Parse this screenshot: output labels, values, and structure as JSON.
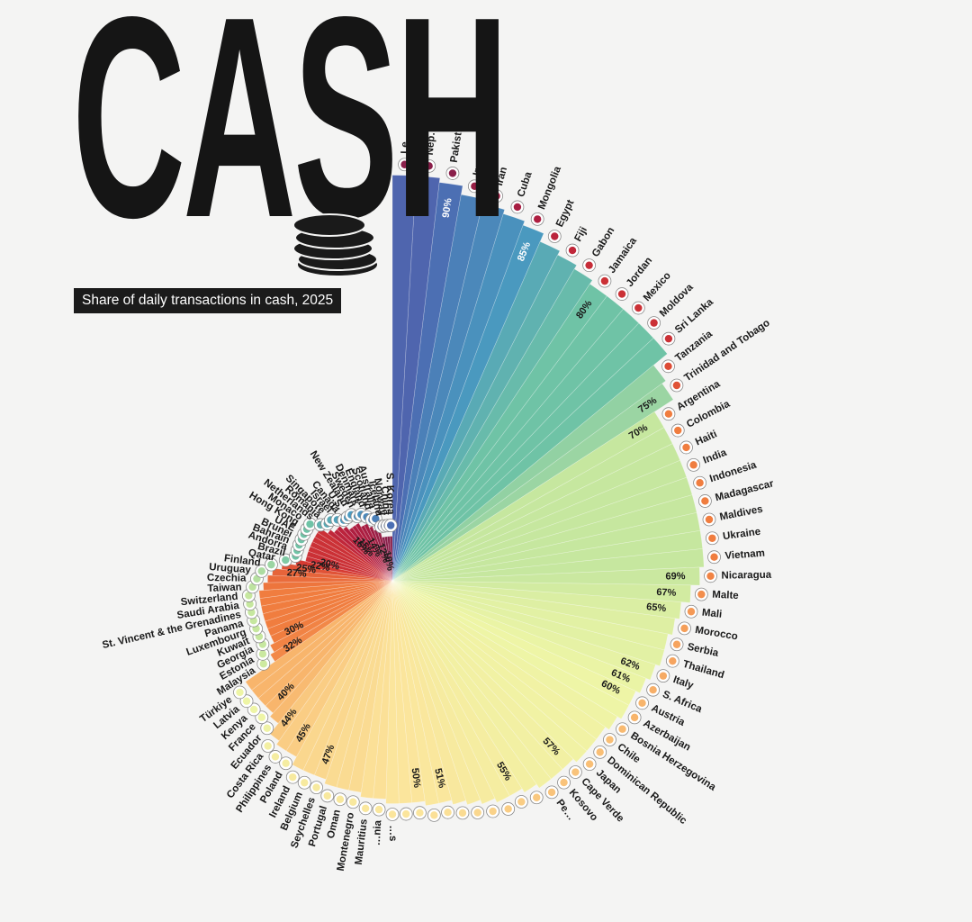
{
  "header": {
    "title": "CASH",
    "subtitle": "Share of daily transactions in cash, 2025"
  },
  "chart_data": {
    "type": "radial-bar",
    "title": "CASH",
    "subtitle": "Share of daily transactions in cash, 2025",
    "unit": "%",
    "visible_value_labels": [
      "90%",
      "85%",
      "80%",
      "75%",
      "70%",
      "69%",
      "67%",
      "65%",
      "62%",
      "61%",
      "60%",
      "57%",
      "55%",
      "51%",
      "50%",
      "47%",
      "45%",
      "44%",
      "40%",
      "32%",
      "30%",
      "27%",
      "25%",
      "22%",
      "20%",
      "16%",
      "15%",
      "14%",
      "12%",
      "10%"
    ],
    "countries": [
      {
        "name": "Le…",
        "value": 91
      },
      {
        "name": "Nep…",
        "value": 91
      },
      {
        "name": "Pakist…",
        "value": 90
      },
      {
        "name": "Iraq",
        "value": 88
      },
      {
        "name": "Iran",
        "value": 87
      },
      {
        "name": "Cuba",
        "value": 86
      },
      {
        "name": "Mongolia",
        "value": 85
      },
      {
        "name": "Egypt",
        "value": 83
      },
      {
        "name": "Fiji",
        "value": 82
      },
      {
        "name": "Gabon",
        "value": 81
      },
      {
        "name": "Jamaica",
        "value": 80
      },
      {
        "name": "Jordan",
        "value": 80
      },
      {
        "name": "Mexico",
        "value": 80
      },
      {
        "name": "Moldova",
        "value": 80
      },
      {
        "name": "Sri Lanka",
        "value": 80
      },
      {
        "name": "Tanzania",
        "value": 76
      },
      {
        "name": "Trinidad and Tobago",
        "value": 75
      },
      {
        "name": "Argentina",
        "value": 70
      },
      {
        "name": "Colombia",
        "value": 70
      },
      {
        "name": "Haiti",
        "value": 70
      },
      {
        "name": "India",
        "value": 70
      },
      {
        "name": "Indonesia",
        "value": 70
      },
      {
        "name": "Madagascar",
        "value": 70
      },
      {
        "name": "Maldives",
        "value": 70
      },
      {
        "name": "Ukraine",
        "value": 70
      },
      {
        "name": "Vietnam",
        "value": 70
      },
      {
        "name": "Nicaragua",
        "value": 69
      },
      {
        "name": "Malte",
        "value": 67
      },
      {
        "name": "Mali",
        "value": 65
      },
      {
        "name": "Morocco",
        "value": 64
      },
      {
        "name": "Serbia",
        "value": 63
      },
      {
        "name": "Thailand",
        "value": 63
      },
      {
        "name": "Italy",
        "value": 62
      },
      {
        "name": "S. Africa",
        "value": 61
      },
      {
        "name": "Austria",
        "value": 60
      },
      {
        "name": "Azerbaijan",
        "value": 60
      },
      {
        "name": "Bosnia Herzegovina",
        "value": 59
      },
      {
        "name": "Chile",
        "value": 58
      },
      {
        "name": "Dominican Republic",
        "value": 58
      },
      {
        "name": "Japan",
        "value": 58
      },
      {
        "name": "Cape Verde",
        "value": 57
      },
      {
        "name": "Kosovo",
        "value": 57
      },
      {
        "name": "Pe…",
        "value": 57
      },
      {
        "name": "",
        "value": 56
      },
      {
        "name": "",
        "value": 55
      },
      {
        "name": "",
        "value": 55
      },
      {
        "name": "",
        "value": 54
      },
      {
        "name": "",
        "value": 53
      },
      {
        "name": "",
        "value": 52
      },
      {
        "name": "",
        "value": 51
      },
      {
        "name": "",
        "value": 51
      },
      {
        "name": "",
        "value": 50
      },
      {
        "name": "",
        "value": 50
      },
      {
        "name": "…s",
        "value": 50
      },
      {
        "name": "…nia",
        "value": 49
      },
      {
        "name": "Mauritius",
        "value": 49
      },
      {
        "name": "Montenegro",
        "value": 48
      },
      {
        "name": "Oman",
        "value": 48
      },
      {
        "name": "Portugal",
        "value": 48
      },
      {
        "name": "Seychelles",
        "value": 47
      },
      {
        "name": "Belgium",
        "value": 47
      },
      {
        "name": "Ireland",
        "value": 47
      },
      {
        "name": "Poland",
        "value": 45
      },
      {
        "name": "Philippines",
        "value": 45
      },
      {
        "name": "Costa Rica",
        "value": 44
      },
      {
        "name": "Ecuador",
        "value": 41
      },
      {
        "name": "France",
        "value": 40
      },
      {
        "name": "Kenya",
        "value": 40
      },
      {
        "name": "Latvia",
        "value": 40
      },
      {
        "name": "Türkiye",
        "value": 40
      },
      {
        "name": "Malaysia",
        "value": 32
      },
      {
        "name": "Estonia",
        "value": 31
      },
      {
        "name": "Georgia",
        "value": 30
      },
      {
        "name": "Kuwait",
        "value": 30
      },
      {
        "name": "Luxembourg",
        "value": 30
      },
      {
        "name": "Panama",
        "value": 30
      },
      {
        "name": "St. Vincent & the Grenadines",
        "value": 30
      },
      {
        "name": "Saudi Arabia",
        "value": 30
      },
      {
        "name": "Switzerland",
        "value": 30
      },
      {
        "name": "Taiwan",
        "value": 29
      },
      {
        "name": "Czechia",
        "value": 28
      },
      {
        "name": "Uruguay",
        "value": 27
      },
      {
        "name": "Finland",
        "value": 25
      },
      {
        "name": "Qatar",
        "value": 22
      },
      {
        "name": "Brazil",
        "value": 20
      },
      {
        "name": "Andorra",
        "value": 20
      },
      {
        "name": "Bahrain",
        "value": 20
      },
      {
        "name": "Brunei",
        "value": 20
      },
      {
        "name": "UAE",
        "value": 20
      },
      {
        "name": "Hong Kong",
        "value": 20
      },
      {
        "name": "Monaco",
        "value": 20
      },
      {
        "name": "Netherlands",
        "value": 18
      },
      {
        "name": "Romania",
        "value": 17
      },
      {
        "name": "Singapore",
        "value": 17
      },
      {
        "name": "Israel",
        "value": 16
      },
      {
        "name": "Canada",
        "value": 15
      },
      {
        "name": "U.S.",
        "value": 15
      },
      {
        "name": "New Zealand",
        "value": 15
      },
      {
        "name": "Sweden",
        "value": 14
      },
      {
        "name": "Denmark",
        "value": 14
      },
      {
        "name": "England",
        "value": 13
      },
      {
        "name": "Scotland",
        "value": 12
      },
      {
        "name": "Australia",
        "value": 12
      },
      {
        "name": "Iceland",
        "value": 10
      },
      {
        "name": "Norway",
        "value": 10
      },
      {
        "name": "China",
        "value": 10
      },
      {
        "name": "S. Korea",
        "value": 10
      }
    ],
    "start_angle_deg": 0,
    "direction": "clockwise",
    "legend": "none"
  }
}
